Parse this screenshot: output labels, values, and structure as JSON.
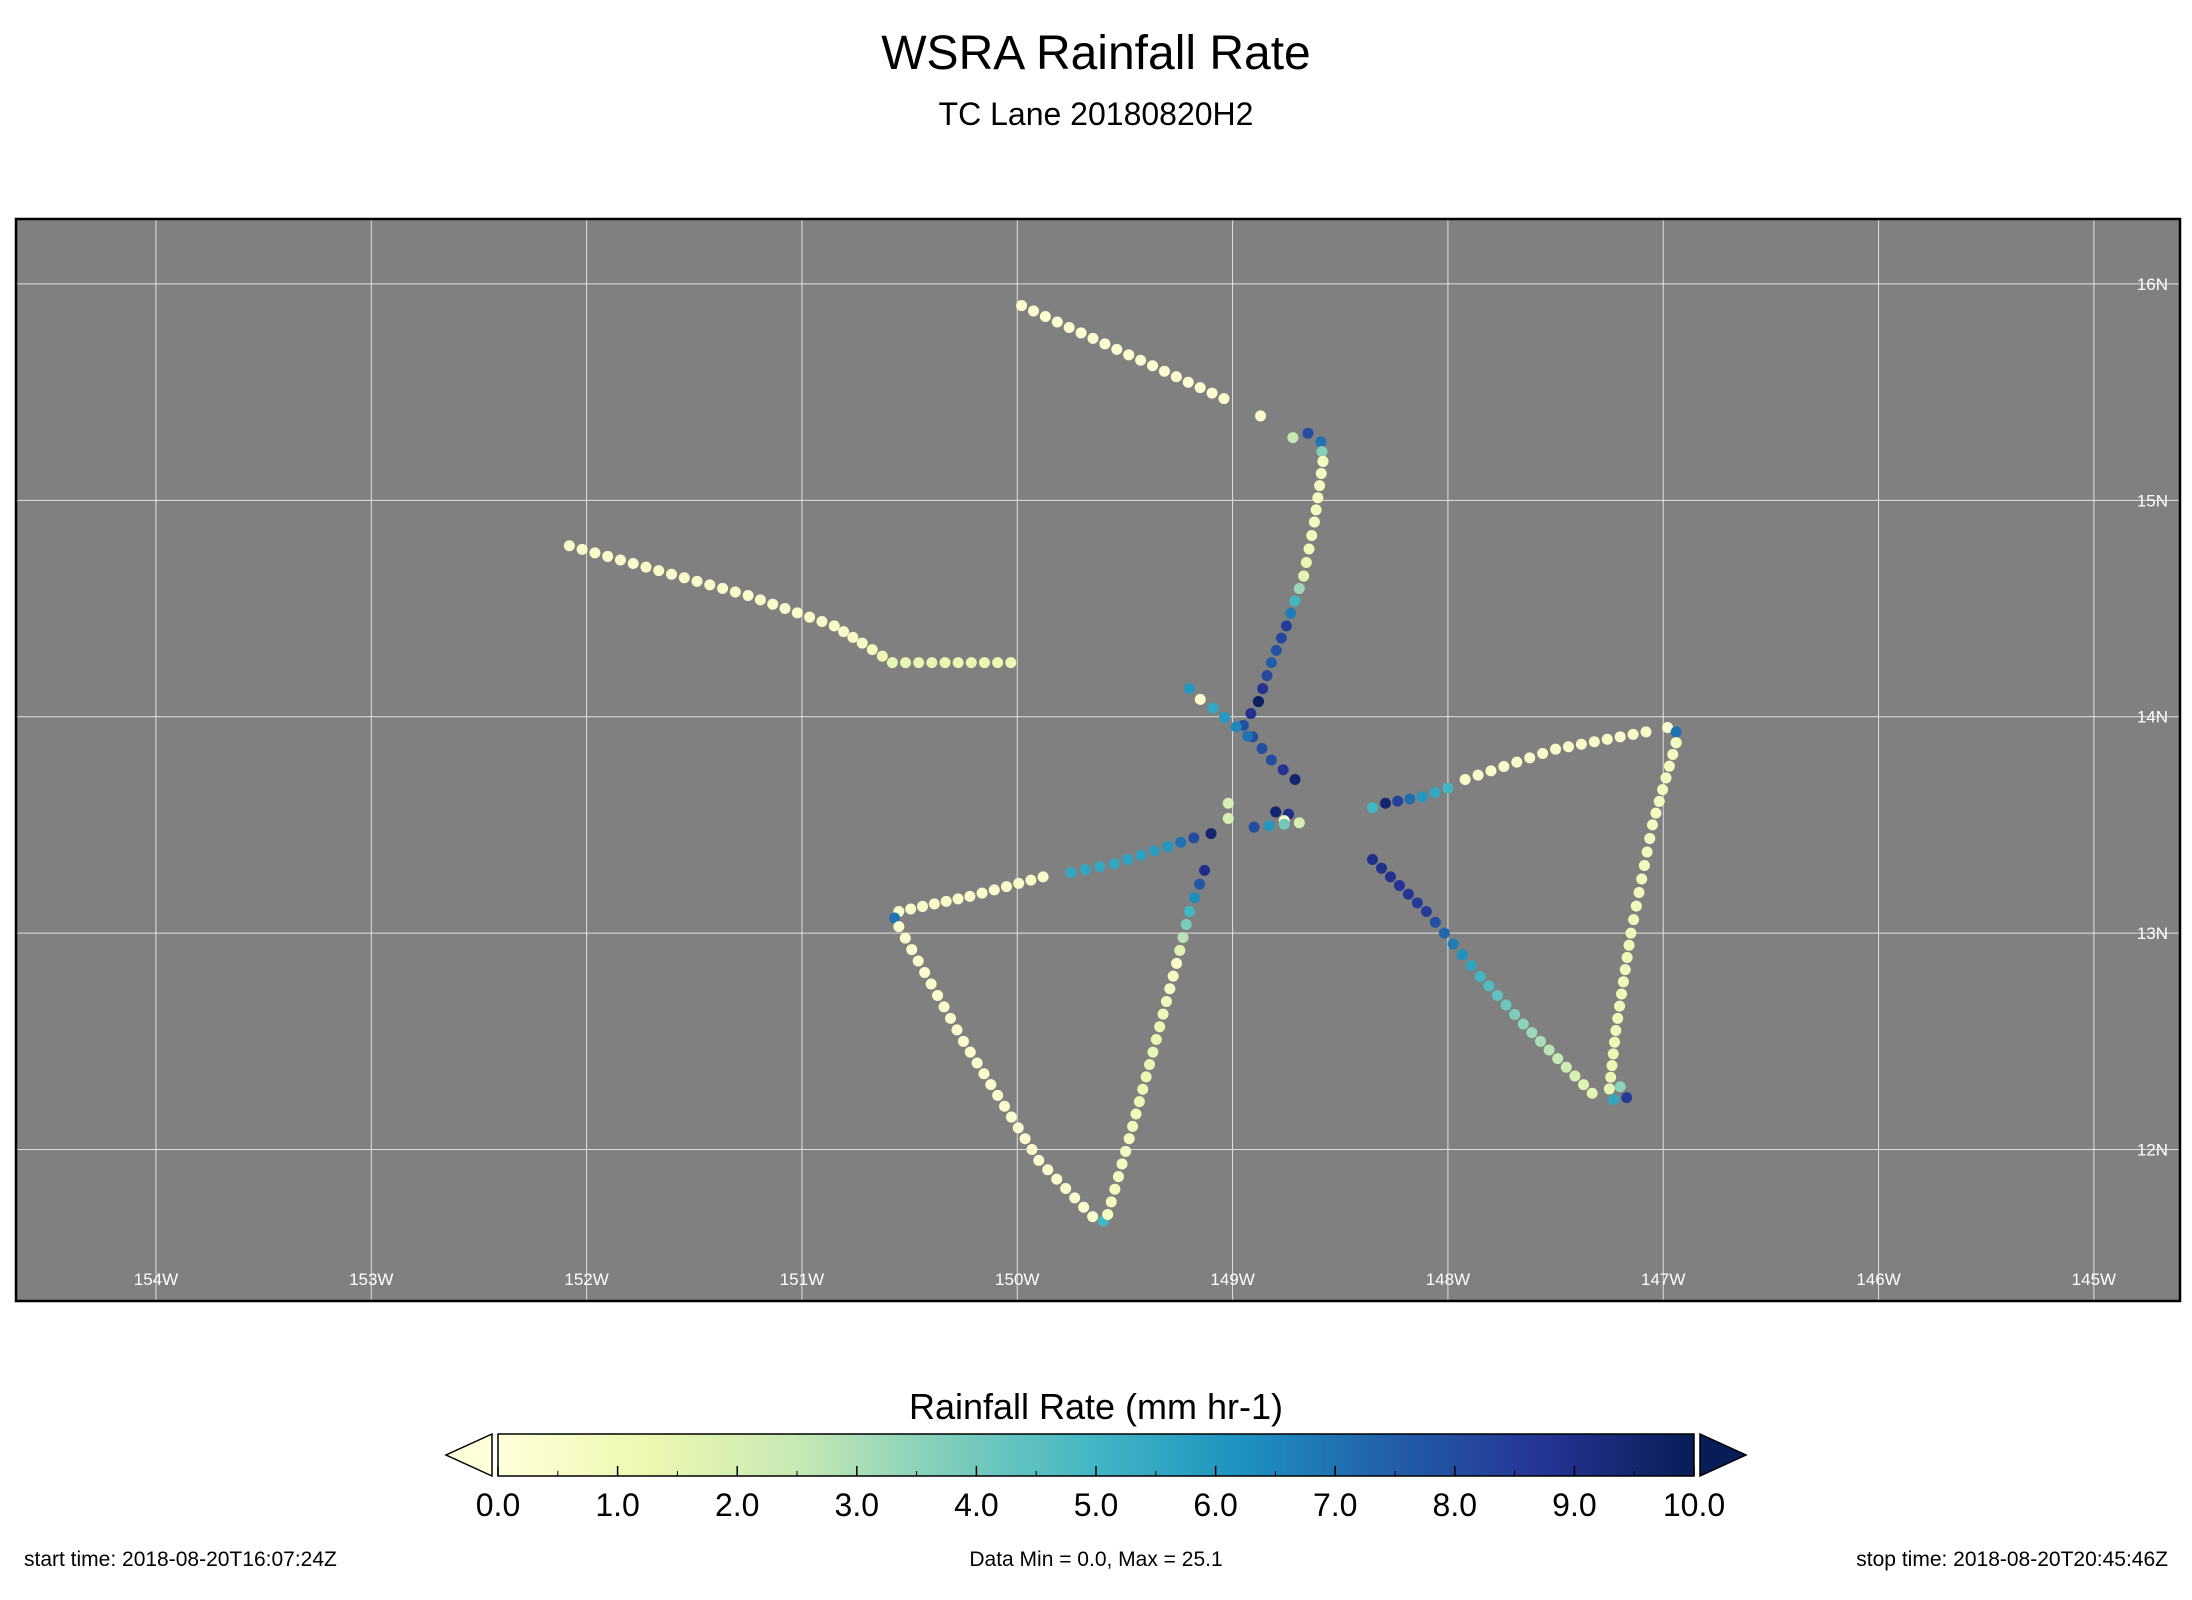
{
  "chart_data": {
    "type": "scatter",
    "title": "WSRA Rainfall Rate",
    "subtitle": "TC Lane 20180820H2",
    "x_axis": {
      "range": [
        -154.65,
        -144.6
      ],
      "ticks": [
        -154,
        -153,
        -152,
        -151,
        -150,
        -149,
        -148,
        -147,
        -146,
        -145
      ],
      "tick_labels": [
        "154W",
        "153W",
        "152W",
        "151W",
        "150W",
        "149W",
        "148W",
        "147W",
        "146W",
        "145W"
      ]
    },
    "y_axis": {
      "range": [
        11.3,
        16.3
      ],
      "ticks": [
        12,
        13,
        14,
        15,
        16
      ],
      "tick_labels": [
        "12N",
        "13N",
        "14N",
        "15N",
        "16N"
      ]
    },
    "grid": true,
    "colorbar": {
      "label": "Rainfall Rate (mm hr-1)",
      "vmin": 0,
      "vmax": 10,
      "tick_labels": [
        "0.0",
        "1.0",
        "2.0",
        "3.0",
        "4.0",
        "5.0",
        "6.0",
        "7.0",
        "8.0",
        "9.0",
        "10.0"
      ],
      "extend": "both",
      "colors": [
        "#ffffd9",
        "#edf8b1",
        "#c7e9b4",
        "#7fcdbb",
        "#41b6c4",
        "#1d91c0",
        "#225ea8",
        "#253494",
        "#081d58"
      ]
    },
    "tracks": [
      {
        "points": [
          [
            -152.08,
            14.79
          ],
          [
            -151.25,
            14.56
          ],
          [
            -150.85,
            14.42
          ],
          [
            -150.72,
            14.34
          ],
          [
            -150.58,
            14.25
          ],
          [
            -150.03,
            14.25
          ]
        ],
        "values": [
          0.5,
          0.5,
          0.5,
          0.6,
          1.5,
          1.2
        ]
      },
      {
        "points": [
          [
            -149.98,
            15.9
          ],
          [
            -149.04,
            15.47
          ]
        ],
        "values": [
          0.3,
          0.3
        ]
      },
      {
        "points": [
          [
            -148.87,
            15.39
          ]
        ],
        "values": [
          0.3
        ]
      },
      {
        "points": [
          [
            -148.72,
            15.29
          ],
          [
            -148.65,
            15.31
          ],
          [
            -148.59,
            15.27
          ],
          [
            -148.58,
            15.18
          ]
        ],
        "values": [
          2.5,
          8.0,
          7.0,
          0.3
        ]
      },
      {
        "points": [
          [
            -148.58,
            15.18
          ],
          [
            -148.62,
            14.9
          ],
          [
            -148.67,
            14.65
          ],
          [
            -148.75,
            14.42
          ],
          [
            -148.82,
            14.25
          ],
          [
            -148.88,
            14.07
          ]
        ],
        "values": [
          0.8,
          0.8,
          1.5,
          8.5,
          7.5,
          9.5
        ]
      },
      {
        "points": [
          [
            -148.88,
            14.07
          ],
          [
            -148.95,
            13.96
          ],
          [
            -148.82,
            13.8
          ],
          [
            -148.71,
            13.71
          ]
        ],
        "values": [
          9.8,
          8.0,
          8.0,
          9.5
        ]
      },
      {
        "points": [
          [
            -149.2,
            14.13
          ],
          [
            -149.15,
            14.08
          ],
          [
            -149.09,
            14.04
          ],
          [
            -148.93,
            13.91
          ]
        ],
        "values": [
          6.0,
          0.3,
          5.5,
          7.0
        ]
      },
      {
        "points": [
          [
            -149.02,
            13.6
          ],
          [
            -149.02,
            13.53
          ]
        ],
        "values": [
          2.0,
          2.0
        ]
      },
      {
        "points": [
          [
            -148.8,
            13.56
          ],
          [
            -148.74,
            13.55
          ],
          [
            -148.76,
            13.52
          ],
          [
            -148.69,
            13.51
          ],
          [
            -148.9,
            13.49
          ]
        ],
        "values": [
          9.5,
          9.0,
          0.3,
          2.0,
          8.0
        ]
      },
      {
        "points": [
          [
            -148.35,
            13.58
          ],
          [
            -148.29,
            13.6
          ],
          [
            -148.12,
            13.63
          ],
          [
            -148.0,
            13.67
          ]
        ],
        "values": [
          5.0,
          9.5,
          6.0,
          5.0
        ]
      },
      {
        "points": [
          [
            -147.92,
            13.71
          ],
          [
            -147.5,
            13.85
          ],
          [
            -147.08,
            13.93
          ]
        ],
        "values": [
          0.5,
          0.5,
          0.5
        ]
      },
      {
        "points": [
          [
            -146.98,
            13.95
          ],
          [
            -146.94,
            13.93
          ],
          [
            -146.94,
            13.88
          ]
        ],
        "values": [
          0.3,
          7.0,
          0.8
        ]
      },
      {
        "points": [
          [
            -146.94,
            13.88
          ],
          [
            -147.05,
            13.5
          ],
          [
            -147.15,
            13.0
          ],
          [
            -147.22,
            12.55
          ],
          [
            -147.25,
            12.28
          ]
        ],
        "values": [
          0.8,
          0.8,
          1.0,
          1.0,
          1.5
        ]
      },
      {
        "points": [
          [
            -147.23,
            12.23
          ],
          [
            -147.17,
            12.24
          ],
          [
            -147.2,
            12.29
          ]
        ],
        "values": [
          5.5,
          8.5,
          3.5
        ]
      },
      {
        "points": [
          [
            -147.33,
            12.26
          ],
          [
            -147.65,
            12.58
          ],
          [
            -147.85,
            12.8
          ],
          [
            -148.1,
            13.1
          ],
          [
            -148.35,
            13.34
          ]
        ],
        "values": [
          1.5,
          3.5,
          5.0,
          8.5,
          9.0
        ]
      },
      {
        "points": [
          [
            -149.1,
            13.46
          ],
          [
            -149.18,
            13.44
          ],
          [
            -149.3,
            13.4
          ],
          [
            -149.55,
            13.32
          ],
          [
            -149.75,
            13.28
          ]
        ],
        "values": [
          9.5,
          8.0,
          6.0,
          5.5,
          5.5
        ]
      },
      {
        "points": [
          [
            -149.88,
            13.26
          ],
          [
            -150.22,
            13.17
          ],
          [
            -150.55,
            13.1
          ]
        ],
        "values": [
          0.5,
          0.5,
          0.5
        ]
      },
      {
        "points": [
          [
            -150.57,
            13.07
          ]
        ],
        "values": [
          7.0
        ]
      },
      {
        "points": [
          [
            -150.55,
            13.03
          ],
          [
            -150.25,
            12.5
          ],
          [
            -149.9,
            11.95
          ],
          [
            -149.65,
            11.69
          ],
          [
            -149.6,
            11.67
          ]
        ],
        "values": [
          0.4,
          0.4,
          0.4,
          0.4,
          5.0
        ]
      },
      {
        "points": [
          [
            -149.58,
            11.7
          ],
          [
            -149.48,
            12.05
          ],
          [
            -149.37,
            12.45
          ],
          [
            -149.26,
            12.86
          ],
          [
            -149.2,
            13.1
          ],
          [
            -149.13,
            13.29
          ]
        ],
        "values": [
          0.8,
          0.8,
          1.5,
          0.5,
          5.0,
          9.0
        ]
      }
    ]
  },
  "footer": {
    "start_time": "start time:  2018-08-20T16:07:24Z",
    "data_range": "Data Min = 0.0, Max = 25.1",
    "stop_time": "stop time: 2018-08-20T20:45:46Z"
  }
}
